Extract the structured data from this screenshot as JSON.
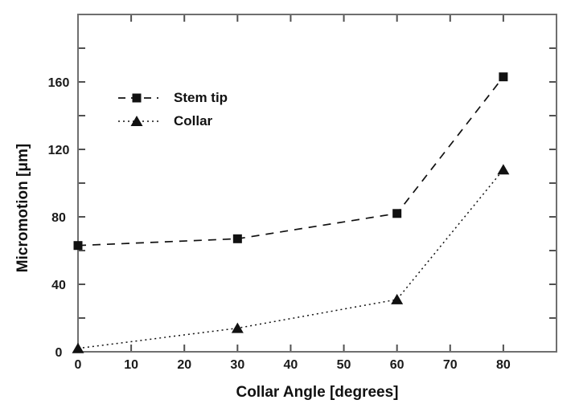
{
  "chart_data": {
    "type": "line",
    "title": "",
    "xlabel": "Collar Angle [degrees]",
    "ylabel": "Micromotion [μm]",
    "x": [
      0,
      30,
      60,
      80
    ],
    "series": [
      {
        "name": "Stem tip",
        "marker": "square",
        "linestyle": "dashed",
        "values": [
          63,
          67,
          82,
          163
        ]
      },
      {
        "name": "Collar",
        "marker": "triangle",
        "linestyle": "dotted",
        "values": [
          2,
          14,
          31,
          108
        ]
      }
    ],
    "xlim": [
      0,
      90
    ],
    "ylim": [
      0,
      200
    ],
    "xticks": [
      0,
      10,
      20,
      30,
      40,
      50,
      60,
      70,
      80
    ],
    "ytick_labels": [
      0,
      40,
      80,
      120,
      160
    ],
    "ytick_minor_step": 20,
    "grid": false,
    "legend_position": "upper-left-inside",
    "colors": {
      "frame": "#6f6f6f",
      "tick": "#515151",
      "text": "#1a1a1a",
      "series": "#111111",
      "background": "#ffffff"
    }
  }
}
